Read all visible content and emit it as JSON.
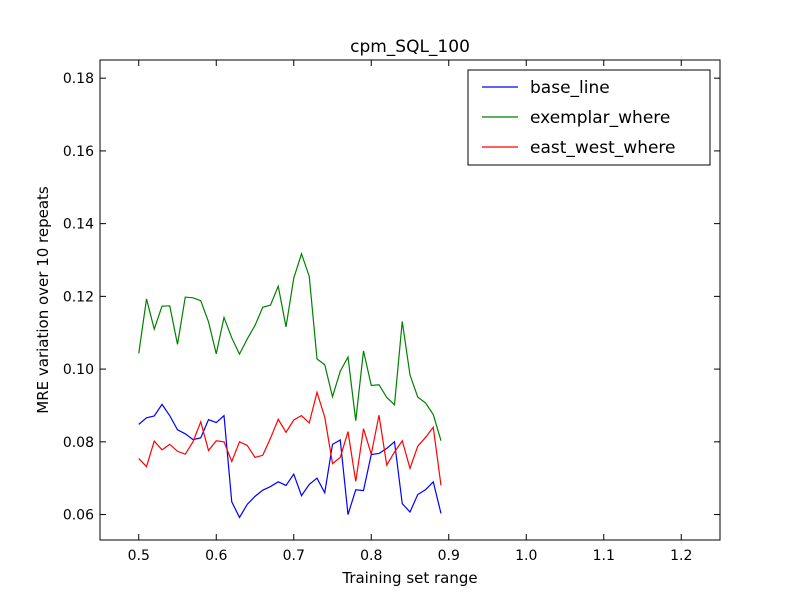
{
  "chart_data": {
    "type": "line",
    "title": "cpm_SQL_100",
    "xlabel": "Training set range",
    "ylabel": "MRE variation over 10 repeats",
    "xlim": [
      0.45,
      1.25
    ],
    "ylim": [
      0.053,
      0.185
    ],
    "x_ticks": [
      0.5,
      0.6,
      0.7,
      0.8,
      0.9,
      1.0,
      1.1,
      1.2
    ],
    "x_tick_labels": [
      "0.5",
      "0.6",
      "0.7",
      "0.8",
      "0.9",
      "1.0",
      "1.1",
      "1.2"
    ],
    "y_ticks": [
      0.06,
      0.08,
      0.1,
      0.12,
      0.14,
      0.16,
      0.18
    ],
    "y_tick_labels": [
      "0.06",
      "0.08",
      "0.10",
      "0.12",
      "0.14",
      "0.16",
      "0.18"
    ],
    "grid": false,
    "legend_position": "top-right",
    "x": [
      0.5,
      0.51,
      0.52,
      0.53,
      0.54,
      0.55,
      0.56,
      0.57,
      0.58,
      0.59,
      0.6,
      0.61,
      0.62,
      0.63,
      0.64,
      0.65,
      0.66,
      0.67,
      0.68,
      0.69,
      0.7,
      0.71,
      0.72,
      0.73,
      0.74,
      0.75,
      0.76,
      0.77,
      0.78,
      0.79,
      0.8,
      0.81,
      0.82,
      0.83,
      0.84,
      0.85,
      0.86,
      0.87,
      0.88,
      0.89
    ],
    "series": [
      {
        "name": "base_line",
        "color": "#0000ff",
        "values": [
          0.0848,
          0.0866,
          0.0871,
          0.0903,
          0.0872,
          0.0833,
          0.0822,
          0.0806,
          0.0811,
          0.0861,
          0.0853,
          0.0872,
          0.0635,
          0.0592,
          0.0628,
          0.065,
          0.0667,
          0.0677,
          0.069,
          0.068,
          0.0711,
          0.0652,
          0.0683,
          0.07,
          0.066,
          0.0793,
          0.0805,
          0.06,
          0.0668,
          0.0666,
          0.0765,
          0.0768,
          0.0782,
          0.08,
          0.063,
          0.0607,
          0.0655,
          0.0668,
          0.069,
          0.0603
        ]
      },
      {
        "name": "exemplar_where",
        "color": "#008000",
        "values": [
          0.1043,
          0.1193,
          0.111,
          0.1173,
          0.1174,
          0.1068,
          0.1198,
          0.1196,
          0.1188,
          0.113,
          0.1042,
          0.1142,
          0.1086,
          0.1041,
          0.1083,
          0.112,
          0.117,
          0.1176,
          0.1228,
          0.1116,
          0.125,
          0.1317,
          0.1255,
          0.1028,
          0.1012,
          0.0924,
          0.0994,
          0.1033,
          0.0858,
          0.105,
          0.0955,
          0.0957,
          0.0922,
          0.0902,
          0.1131,
          0.0984,
          0.0923,
          0.0907,
          0.0875,
          0.0803
        ]
      },
      {
        "name": "east_west_where",
        "color": "#ff0000",
        "values": [
          0.0754,
          0.0732,
          0.0802,
          0.0778,
          0.0793,
          0.0774,
          0.0766,
          0.08,
          0.0855,
          0.0776,
          0.0803,
          0.08,
          0.0746,
          0.08,
          0.079,
          0.0757,
          0.0763,
          0.081,
          0.0862,
          0.0826,
          0.086,
          0.0872,
          0.0852,
          0.0936,
          0.0868,
          0.074,
          0.0757,
          0.0828,
          0.0691,
          0.0836,
          0.0766,
          0.0873,
          0.0736,
          0.0772,
          0.0803,
          0.0727,
          0.0788,
          0.0812,
          0.084,
          0.068
        ]
      }
    ]
  }
}
